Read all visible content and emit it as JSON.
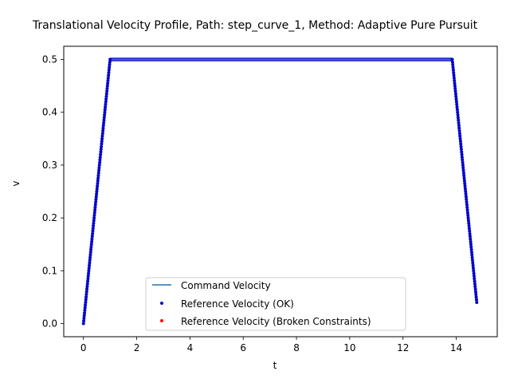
{
  "chart_data": {
    "type": "line",
    "title": "Translational Velocity Profile, Path: step_curve_1, Method: Adaptive Pure Pursuit",
    "xlabel": "t",
    "ylabel": "v",
    "xlim": [
      -0.74,
      15.54
    ],
    "ylim": [
      -0.025,
      0.525
    ],
    "xticks": [
      0,
      2,
      4,
      6,
      8,
      10,
      12,
      14
    ],
    "yticks": [
      0.0,
      0.1,
      0.2,
      0.3,
      0.4,
      0.5
    ],
    "xtick_labels": [
      "0",
      "2",
      "4",
      "6",
      "8",
      "10",
      "12",
      "14"
    ],
    "ytick_labels": [
      "0.0",
      "0.1",
      "0.2",
      "0.3",
      "0.4",
      "0.5"
    ],
    "grid": false,
    "legend_position": "bottom-center",
    "series": [
      {
        "name": "Command Velocity",
        "kind": "line",
        "color": "#1f77b4",
        "points": [
          [
            0,
            0.0
          ],
          [
            1.0,
            0.5
          ],
          [
            13.85,
            0.5
          ],
          [
            14.77,
            0.04
          ]
        ]
      },
      {
        "name": "Reference Velocity (OK)",
        "kind": "scatter",
        "color": "#0000cc",
        "segments": [
          {
            "t0": 0,
            "v0": 0.0,
            "t1": 1.0,
            "v1": 0.5,
            "step": 0.01
          },
          {
            "t0": 13.85,
            "v0": 0.5,
            "t1": 14.77,
            "v1": 0.04,
            "step": 0.01
          }
        ],
        "plateau": {
          "t0": 1.0,
          "t1": 13.85,
          "v": 0.5
        }
      },
      {
        "name": "Reference Velocity (Broken Constraints)",
        "kind": "scatter",
        "color": "#ff0000",
        "points": []
      }
    ]
  }
}
